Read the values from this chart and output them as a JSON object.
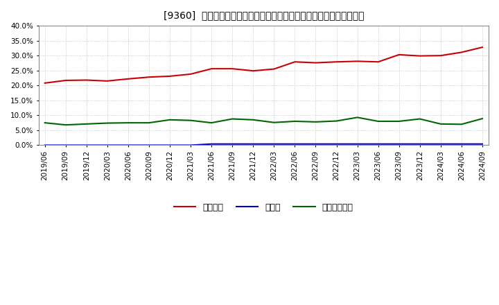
{
  "title": "[9360]  自己資本、のれん、繰延税金資産の総資産に対する比率の推移",
  "background_color": "#ffffff",
  "plot_bg_color": "#ffffff",
  "grid_color": "#aaaaaa",
  "x_labels": [
    "2019/06",
    "2019/09",
    "2019/12",
    "2020/03",
    "2020/06",
    "2020/09",
    "2020/12",
    "2021/03",
    "2021/06",
    "2021/09",
    "2021/12",
    "2022/03",
    "2022/06",
    "2022/09",
    "2022/12",
    "2023/03",
    "2023/06",
    "2023/09",
    "2023/12",
    "2024/03",
    "2024/06",
    "2024/09"
  ],
  "equity_ratio": [
    20.8,
    21.7,
    21.8,
    21.5,
    22.2,
    22.8,
    23.1,
    23.8,
    25.6,
    25.6,
    24.9,
    25.5,
    27.9,
    27.6,
    27.9,
    28.1,
    27.9,
    30.3,
    29.9,
    30.0,
    31.1,
    32.8
  ],
  "goodwill_ratio": [
    0.0,
    0.0,
    0.0,
    0.0,
    0.0,
    0.0,
    0.0,
    0.0,
    0.4,
    0.4,
    0.4,
    0.4,
    0.4,
    0.4,
    0.4,
    0.4,
    0.4,
    0.4,
    0.4,
    0.4,
    0.4,
    0.4
  ],
  "deferred_tax_ratio": [
    7.5,
    6.8,
    7.1,
    7.4,
    7.5,
    7.5,
    8.5,
    8.3,
    7.5,
    8.8,
    8.5,
    7.6,
    8.0,
    7.8,
    8.1,
    9.3,
    8.0,
    8.0,
    8.8,
    7.1,
    7.0,
    8.9
  ],
  "equity_color": "#cc0000",
  "goodwill_color": "#0000cc",
  "deferred_tax_color": "#006600",
  "legend_labels": [
    "自己資本",
    "のれん",
    "繰延税金資産"
  ],
  "ylim": [
    0,
    40
  ],
  "yticks": [
    0.0,
    5.0,
    10.0,
    15.0,
    20.0,
    25.0,
    30.0,
    35.0,
    40.0
  ]
}
